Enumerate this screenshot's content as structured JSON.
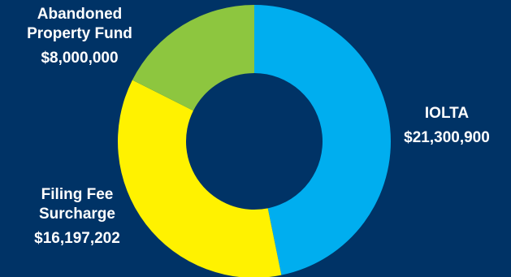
{
  "chart_data": {
    "type": "pie",
    "donut": true,
    "title": "",
    "slices": [
      {
        "name_lines": [
          "IOLTA"
        ],
        "value": 21300900,
        "value_label": "$21,300,900",
        "color": "#00AEEF"
      },
      {
        "name_lines": [
          "Filing Fee",
          "Surcharge"
        ],
        "value": 16197202,
        "value_label": "$16,197,202",
        "color": "#FFF200"
      },
      {
        "name_lines": [
          "Abandoned",
          "Property Fund"
        ],
        "value": 8000000,
        "value_label": "$8,000,000",
        "color": "#8DC63F"
      }
    ]
  },
  "colors": {
    "background": "#003366",
    "text": "#FFFFFF"
  }
}
